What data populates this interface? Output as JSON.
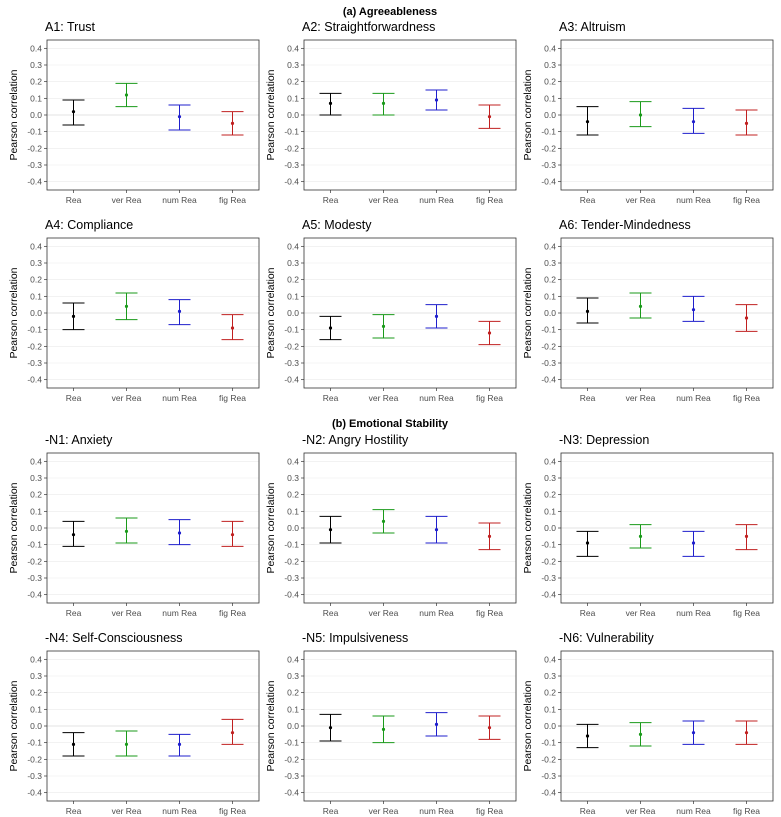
{
  "section_titles": {
    "agreeableness": "(a) Agreeableness",
    "emotional_stability": "(b) Emotional Stability"
  },
  "series_colors": {
    "Rea": "#000000",
    "ver Rea": "#1a9a1a",
    "num Rea": "#1f1fcc",
    "fig Rea": "#c02020"
  },
  "chart_data": [
    {
      "type": "errorbar",
      "section": "agreeableness",
      "title": "A1: Trust",
      "ylabel": "Pearson correlation",
      "ylim": [
        -0.45,
        0.45
      ],
      "yticks": [
        "-0.4",
        "-0.3",
        "-0.2",
        "-0.1",
        "0.0",
        "0.1",
        "0.2",
        "0.3",
        "0.4"
      ],
      "categories": [
        "Rea",
        "ver Rea",
        "num Rea",
        "fig Rea"
      ],
      "values": [
        0.02,
        0.12,
        -0.01,
        -0.05
      ],
      "lower": [
        -0.06,
        0.05,
        -0.09,
        -0.12
      ],
      "upper": [
        0.09,
        0.19,
        0.06,
        0.02
      ]
    },
    {
      "type": "errorbar",
      "section": "agreeableness",
      "title": "A2: Straightforwardness",
      "ylabel": "Pearson correlation",
      "ylim": [
        -0.45,
        0.45
      ],
      "yticks": [
        "-0.4",
        "-0.3",
        "-0.2",
        "-0.1",
        "0.0",
        "0.1",
        "0.2",
        "0.3",
        "0.4"
      ],
      "categories": [
        "Rea",
        "ver Rea",
        "num Rea",
        "fig Rea"
      ],
      "values": [
        0.07,
        0.07,
        0.09,
        -0.01
      ],
      "lower": [
        0.0,
        0.0,
        0.03,
        -0.08
      ],
      "upper": [
        0.13,
        0.13,
        0.15,
        0.06
      ]
    },
    {
      "type": "errorbar",
      "section": "agreeableness",
      "title": "A3: Altruism",
      "ylabel": "Pearson correlation",
      "ylim": [
        -0.45,
        0.45
      ],
      "yticks": [
        "-0.4",
        "-0.3",
        "-0.2",
        "-0.1",
        "0.0",
        "0.1",
        "0.2",
        "0.3",
        "0.4"
      ],
      "categories": [
        "Rea",
        "ver Rea",
        "num Rea",
        "fig Rea"
      ],
      "values": [
        -0.04,
        0.0,
        -0.04,
        -0.05
      ],
      "lower": [
        -0.12,
        -0.07,
        -0.11,
        -0.12
      ],
      "upper": [
        0.05,
        0.08,
        0.04,
        0.03
      ]
    },
    {
      "type": "errorbar",
      "section": "agreeableness",
      "title": "A4: Compliance",
      "ylabel": "Pearson correlation",
      "ylim": [
        -0.45,
        0.45
      ],
      "yticks": [
        "-0.4",
        "-0.3",
        "-0.2",
        "-0.1",
        "0.0",
        "0.1",
        "0.2",
        "0.3",
        "0.4"
      ],
      "categories": [
        "Rea",
        "ver Rea",
        "num Rea",
        "fig Rea"
      ],
      "values": [
        -0.02,
        0.04,
        0.01,
        -0.09
      ],
      "lower": [
        -0.1,
        -0.04,
        -0.07,
        -0.16
      ],
      "upper": [
        0.06,
        0.12,
        0.08,
        -0.01
      ]
    },
    {
      "type": "errorbar",
      "section": "agreeableness",
      "title": "A5: Modesty",
      "ylabel": "Pearson correlation",
      "ylim": [
        -0.45,
        0.45
      ],
      "yticks": [
        "-0.4",
        "-0.3",
        "-0.2",
        "-0.1",
        "0.0",
        "0.1",
        "0.2",
        "0.3",
        "0.4"
      ],
      "categories": [
        "Rea",
        "ver Rea",
        "num Rea",
        "fig Rea"
      ],
      "values": [
        -0.09,
        -0.08,
        -0.02,
        -0.12
      ],
      "lower": [
        -0.16,
        -0.15,
        -0.09,
        -0.19
      ],
      "upper": [
        -0.02,
        -0.01,
        0.05,
        -0.05
      ]
    },
    {
      "type": "errorbar",
      "section": "agreeableness",
      "title": "A6: Tender-Mindedness",
      "ylabel": "Pearson correlation",
      "ylim": [
        -0.45,
        0.45
      ],
      "yticks": [
        "-0.4",
        "-0.3",
        "-0.2",
        "-0.1",
        "0.0",
        "0.1",
        "0.2",
        "0.3",
        "0.4"
      ],
      "categories": [
        "Rea",
        "ver Rea",
        "num Rea",
        "fig Rea"
      ],
      "values": [
        0.01,
        0.04,
        0.02,
        -0.03
      ],
      "lower": [
        -0.06,
        -0.03,
        -0.05,
        -0.11
      ],
      "upper": [
        0.09,
        0.12,
        0.1,
        0.05
      ]
    },
    {
      "type": "errorbar",
      "section": "emotional_stability",
      "title": "-N1: Anxiety",
      "ylabel": "Pearson correlation",
      "ylim": [
        -0.45,
        0.45
      ],
      "yticks": [
        "-0.4",
        "-0.3",
        "-0.2",
        "-0.1",
        "0.0",
        "0.1",
        "0.2",
        "0.3",
        "0.4"
      ],
      "categories": [
        "Rea",
        "ver Rea",
        "num Rea",
        "fig Rea"
      ],
      "values": [
        -0.04,
        -0.02,
        -0.03,
        -0.04
      ],
      "lower": [
        -0.11,
        -0.09,
        -0.1,
        -0.11
      ],
      "upper": [
        0.04,
        0.06,
        0.05,
        0.04
      ]
    },
    {
      "type": "errorbar",
      "section": "emotional_stability",
      "title": "-N2: Angry Hostility",
      "ylabel": "Pearson correlation",
      "ylim": [
        -0.45,
        0.45
      ],
      "yticks": [
        "-0.4",
        "-0.3",
        "-0.2",
        "-0.1",
        "0.0",
        "0.1",
        "0.2",
        "0.3",
        "0.4"
      ],
      "categories": [
        "Rea",
        "ver Rea",
        "num Rea",
        "fig Rea"
      ],
      "values": [
        -0.01,
        0.04,
        -0.01,
        -0.05
      ],
      "lower": [
        -0.09,
        -0.03,
        -0.09,
        -0.13
      ],
      "upper": [
        0.07,
        0.11,
        0.07,
        0.03
      ]
    },
    {
      "type": "errorbar",
      "section": "emotional_stability",
      "title": "-N3: Depression",
      "ylabel": "Pearson correlation",
      "ylim": [
        -0.45,
        0.45
      ],
      "yticks": [
        "-0.4",
        "-0.3",
        "-0.2",
        "-0.1",
        "0.0",
        "0.1",
        "0.2",
        "0.3",
        "0.4"
      ],
      "categories": [
        "Rea",
        "ver Rea",
        "num Rea",
        "fig Rea"
      ],
      "values": [
        -0.09,
        -0.05,
        -0.09,
        -0.05
      ],
      "lower": [
        -0.17,
        -0.12,
        -0.17,
        -0.13
      ],
      "upper": [
        -0.02,
        0.02,
        -0.02,
        0.02
      ]
    },
    {
      "type": "errorbar",
      "section": "emotional_stability",
      "title": "-N4: Self-Consciousness",
      "ylabel": "Pearson correlation",
      "ylim": [
        -0.45,
        0.45
      ],
      "yticks": [
        "-0.4",
        "-0.3",
        "-0.2",
        "-0.1",
        "0.0",
        "0.1",
        "0.2",
        "0.3",
        "0.4"
      ],
      "categories": [
        "Rea",
        "ver Rea",
        "num Rea",
        "fig Rea"
      ],
      "values": [
        -0.11,
        -0.11,
        -0.11,
        -0.04
      ],
      "lower": [
        -0.18,
        -0.18,
        -0.18,
        -0.11
      ],
      "upper": [
        -0.04,
        -0.03,
        -0.05,
        0.04
      ]
    },
    {
      "type": "errorbar",
      "section": "emotional_stability",
      "title": "-N5: Impulsiveness",
      "ylabel": "Pearson correlation",
      "ylim": [
        -0.45,
        0.45
      ],
      "yticks": [
        "-0.4",
        "-0.3",
        "-0.2",
        "-0.1",
        "0.0",
        "0.1",
        "0.2",
        "0.3",
        "0.4"
      ],
      "categories": [
        "Rea",
        "ver Rea",
        "num Rea",
        "fig Rea"
      ],
      "values": [
        -0.01,
        -0.02,
        0.01,
        -0.01
      ],
      "lower": [
        -0.09,
        -0.1,
        -0.06,
        -0.08
      ],
      "upper": [
        0.07,
        0.06,
        0.08,
        0.06
      ]
    },
    {
      "type": "errorbar",
      "section": "emotional_stability",
      "title": "-N6: Vulnerability",
      "ylabel": "Pearson correlation",
      "ylim": [
        -0.45,
        0.45
      ],
      "yticks": [
        "-0.4",
        "-0.3",
        "-0.2",
        "-0.1",
        "0.0",
        "0.1",
        "0.2",
        "0.3",
        "0.4"
      ],
      "categories": [
        "Rea",
        "ver Rea",
        "num Rea",
        "fig Rea"
      ],
      "values": [
        -0.06,
        -0.05,
        -0.04,
        -0.04
      ],
      "lower": [
        -0.13,
        -0.12,
        -0.11,
        -0.11
      ],
      "upper": [
        0.01,
        0.02,
        0.03,
        0.03
      ]
    }
  ]
}
